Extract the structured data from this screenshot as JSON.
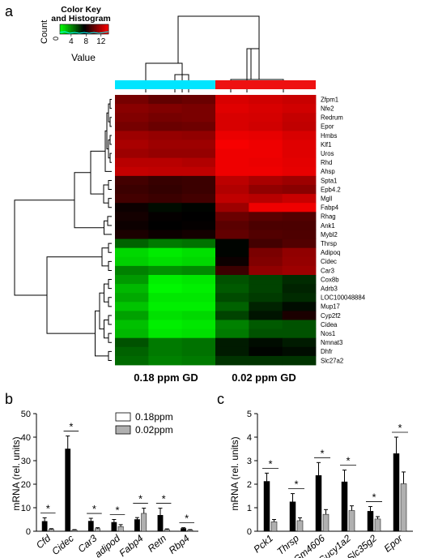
{
  "panels": {
    "a": "a",
    "b": "b",
    "c": "c"
  },
  "chart_data": [
    {
      "type": "heatmap",
      "panel": "a",
      "color_key": {
        "title_line1": "Color Key",
        "title_line2": "and Histogram",
        "count_label": "Count",
        "count_tick": "0",
        "value_label": "Value",
        "ticks": [
          "4",
          "8",
          "12"
        ],
        "tick_values": [
          4,
          8,
          12
        ],
        "range": [
          1,
          14
        ],
        "colors": [
          "#00ff00",
          "#000000",
          "#ff0000"
        ],
        "histogram_color": "#00ffff"
      },
      "group_colors": [
        "#00e5ff",
        "#ee1111"
      ],
      "column_groups": [
        "0.18 ppm  GD",
        "0.02 ppm  GD"
      ],
      "genes": [
        "Zfpm1",
        "Nfe2",
        "Redrum",
        "Epor",
        "Hmbs",
        "Klf1",
        "Uros",
        "Rhd",
        "Ahsp",
        "Spta1",
        "Epb4.2",
        "Mgll",
        "Fabp4",
        "Rhag",
        "Ank1",
        "Mybl2",
        "Thrsp",
        "Adipoq",
        "Cidec",
        "Car3",
        "Cox8b",
        "Adrb3",
        "LOC100048884",
        "Mup17",
        "Cyp2f2",
        "Cidea",
        "Nos1",
        "Nmnat3",
        "Dhfr",
        "Slc27a2"
      ],
      "values": [
        [
          10.5,
          10.0,
          10.2,
          13.0,
          12.8,
          12.6
        ],
        [
          11.0,
          10.8,
          10.6,
          13.2,
          13.0,
          12.8
        ],
        [
          10.8,
          10.5,
          10.6,
          13.0,
          12.9,
          12.5
        ],
        [
          10.5,
          10.2,
          10.3,
          13.0,
          12.8,
          12.4
        ],
        [
          11.5,
          11.3,
          11.2,
          13.5,
          13.4,
          13.0
        ],
        [
          11.8,
          11.5,
          11.5,
          13.8,
          13.6,
          13.2
        ],
        [
          11.5,
          11.3,
          11.3,
          13.6,
          13.6,
          13.2
        ],
        [
          12.2,
          12.2,
          12.0,
          13.6,
          13.5,
          13.3
        ],
        [
          12.5,
          12.4,
          12.4,
          13.6,
          13.6,
          13.4
        ],
        [
          9.2,
          8.9,
          9.0,
          12.3,
          11.8,
          11.5
        ],
        [
          9.0,
          8.8,
          9.0,
          12.0,
          11.2,
          11.0
        ],
        [
          9.2,
          9.0,
          9.2,
          12.4,
          12.2,
          12.6
        ],
        [
          7.8,
          7.2,
          7.4,
          11.5,
          13.6,
          13.6
        ],
        [
          8.0,
          7.6,
          7.5,
          10.2,
          9.8,
          9.6
        ],
        [
          7.8,
          7.5,
          7.6,
          9.8,
          9.4,
          9.4
        ],
        [
          8.2,
          7.8,
          8.0,
          10.0,
          9.6,
          9.5
        ],
        [
          5.0,
          4.4,
          4.6,
          7.4,
          9.2,
          9.6
        ],
        [
          2.0,
          1.5,
          1.8,
          7.4,
          10.6,
          11.2
        ],
        [
          2.2,
          1.8,
          2.0,
          7.8,
          10.8,
          11.3
        ],
        [
          4.2,
          3.8,
          4.0,
          9.0,
          11.2,
          11.5
        ],
        [
          3.6,
          1.4,
          1.6,
          5.4,
          5.8,
          6.4
        ],
        [
          2.8,
          1.2,
          1.4,
          5.2,
          5.8,
          6.6
        ],
        [
          3.2,
          1.6,
          1.6,
          5.6,
          6.0,
          6.4
        ],
        [
          2.5,
          1.4,
          1.4,
          5.0,
          6.6,
          7.2
        ],
        [
          3.4,
          1.8,
          2.0,
          5.8,
          7.0,
          8.2
        ],
        [
          2.6,
          1.4,
          1.6,
          4.2,
          5.2,
          5.4
        ],
        [
          2.8,
          1.6,
          1.8,
          4.4,
          5.4,
          5.4
        ],
        [
          5.4,
          4.4,
          4.6,
          6.8,
          7.2,
          6.8
        ],
        [
          5.0,
          4.4,
          4.6,
          6.8,
          7.4,
          7.2
        ],
        [
          4.8,
          4.2,
          4.4,
          6.2,
          6.2,
          6.2
        ]
      ]
    },
    {
      "type": "bar",
      "panel": "b",
      "ylabel": "mRNA (rel. units)",
      "ylim": [
        0,
        50
      ],
      "yticks": [
        "0",
        "10",
        "20",
        "30",
        "40",
        "50"
      ],
      "ytick_values": [
        0,
        10,
        20,
        30,
        40,
        50
      ],
      "legend": "top-right",
      "categories": [
        "Cfd",
        "Cidec",
        "Car3",
        "adipod",
        "Fabp4",
        "Retn",
        "Rbp4"
      ],
      "significance": [
        "*",
        "*",
        "*",
        "*",
        "*",
        "*",
        "*"
      ],
      "series": [
        {
          "name": "0.18ppm",
          "color": "#000000",
          "values": [
            4.2,
            35.0,
            4.3,
            3.8,
            5.0,
            6.8,
            1.2
          ],
          "errors": [
            1.5,
            5.5,
            1.2,
            1.2,
            0.8,
            3.0,
            0.3
          ]
        },
        {
          "name": "0.02ppm",
          "color": "#b0b0b0",
          "values": [
            0.8,
            0.5,
            1.1,
            2.0,
            7.6,
            0.7,
            0.5
          ],
          "errors": [
            0.3,
            0.2,
            0.4,
            0.8,
            2.2,
            0.3,
            0.2
          ]
        }
      ]
    },
    {
      "type": "bar",
      "panel": "c",
      "ylabel": "mRNA (rel. units)",
      "ylim": [
        0,
        5
      ],
      "yticks": [
        "0",
        "1",
        "2",
        "3",
        "4",
        "5"
      ],
      "ytick_values": [
        0,
        1,
        2,
        3,
        4,
        5
      ],
      "categories": [
        "Pck1",
        "Thrsp",
        "Gm4606",
        "Gucy1a2",
        "Slc35g2",
        "Epor"
      ],
      "significance": [
        "*",
        "*",
        "*",
        "*",
        "*",
        "*"
      ],
      "series": [
        {
          "name": "0.18ppm",
          "color": "#000000",
          "values": [
            2.12,
            1.25,
            2.37,
            2.1,
            0.85,
            3.3
          ],
          "errors": [
            0.35,
            0.35,
            0.55,
            0.5,
            0.2,
            0.7
          ]
        },
        {
          "name": "0.02ppm",
          "color": "#b0b0b0",
          "values": [
            0.4,
            0.45,
            0.72,
            0.88,
            0.52,
            2.02
          ],
          "errors": [
            0.1,
            0.12,
            0.2,
            0.2,
            0.1,
            0.5
          ]
        }
      ]
    }
  ]
}
